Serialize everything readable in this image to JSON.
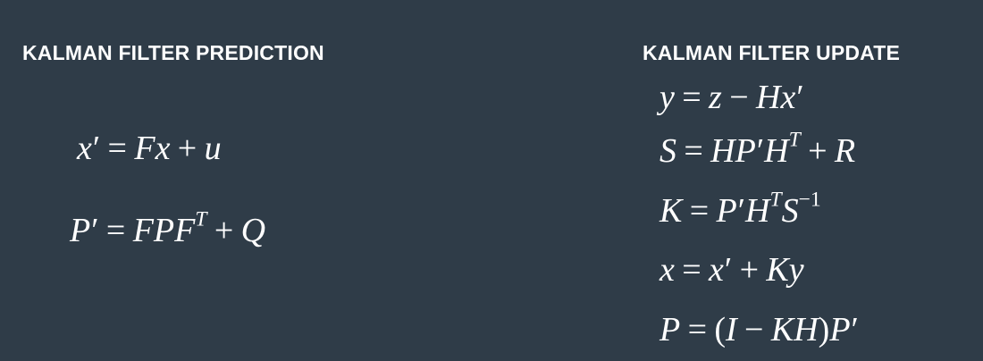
{
  "prediction": {
    "heading": "KALMAN FILTER PREDICTION",
    "equations": [
      "x′ = Fx + u",
      "P′ = FPF^T + Q"
    ]
  },
  "update": {
    "heading": "KALMAN FILTER UPDATE",
    "equations": [
      "y = z − Hx′",
      "S = HP′H^T + R",
      "K = P′H^T S^−1",
      "x = x′ + Ky",
      "P = (I − KH)P′"
    ]
  },
  "colors": {
    "background": "#2f3c48",
    "text": "#ffffff"
  }
}
